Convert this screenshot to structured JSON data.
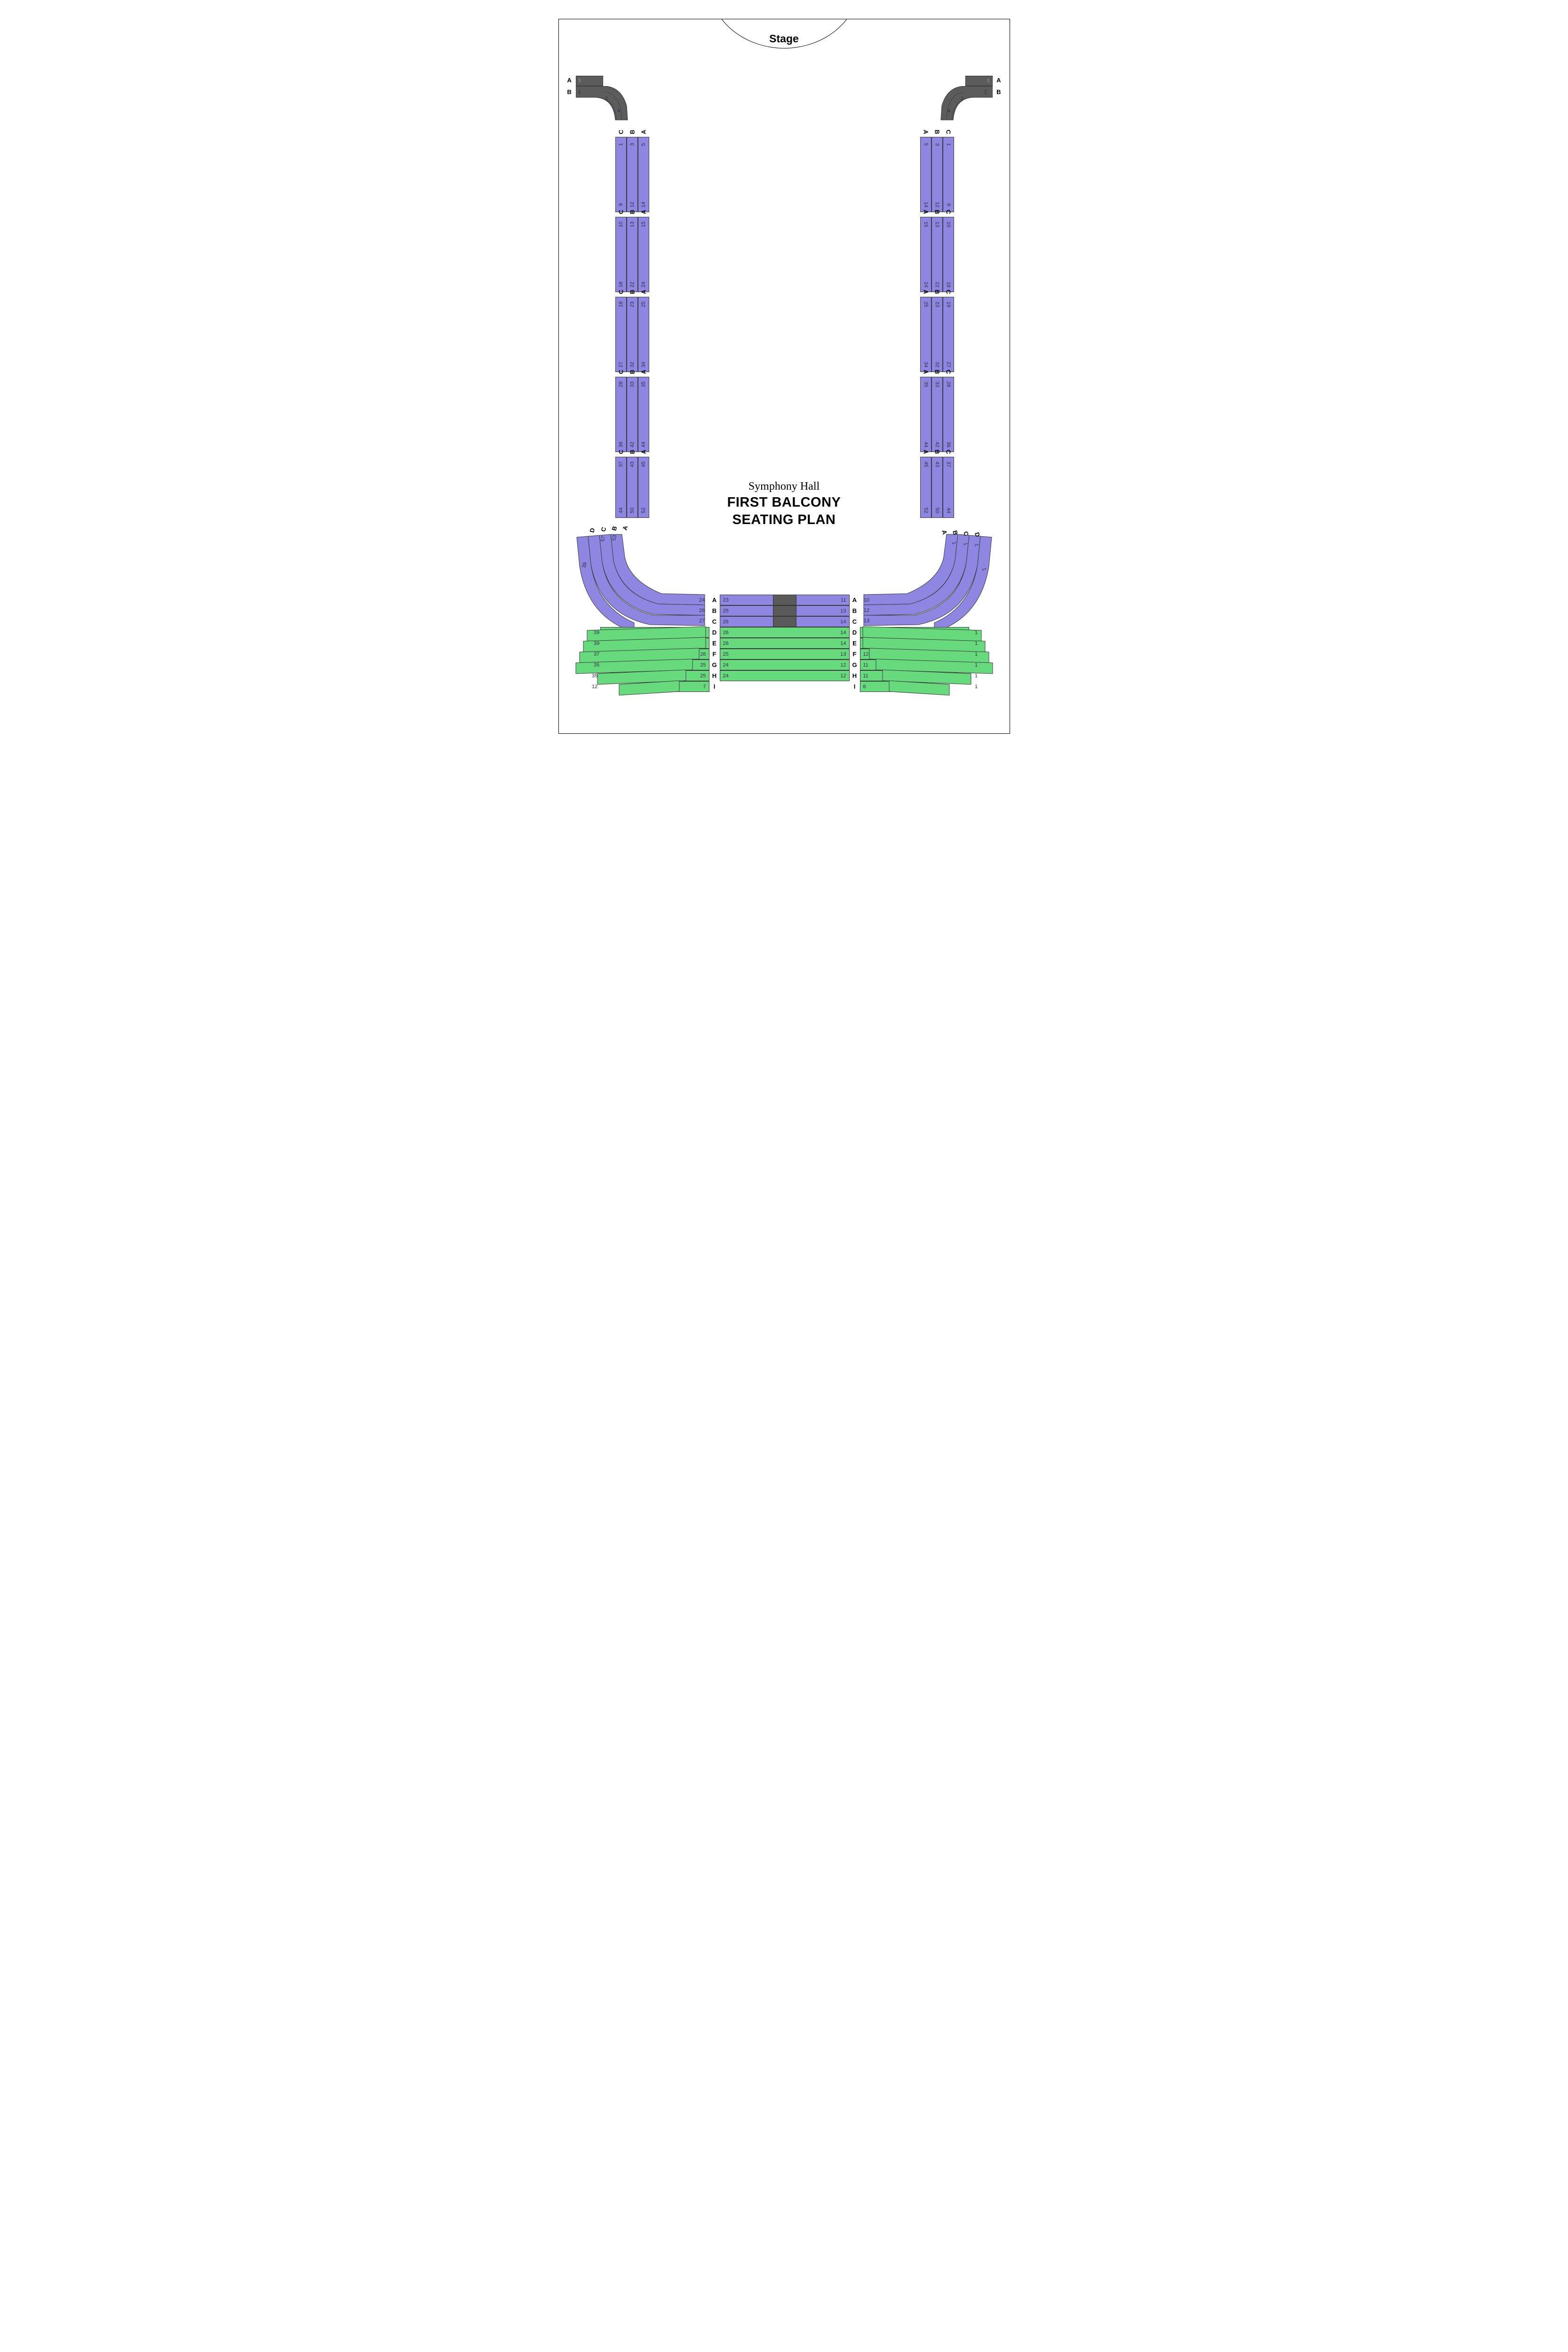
{
  "stage_label": "Stage",
  "titles": {
    "line1": "Symphony Hall",
    "line2": "FIRST BALCONY",
    "line3": "SEATING PLAN"
  },
  "colors": {
    "purple": "#8e86e0",
    "green": "#68da7e",
    "grey": "#5c5c5c",
    "darkgrey": "#5a5a5a",
    "stroke": "#3a3a3a",
    "row_stroke_inner": "#555570",
    "bg": "#ffffff"
  },
  "corner": {
    "left": {
      "rows": [
        "A",
        "B"
      ],
      "nums": [
        [
          "1"
        ],
        [
          "1",
          "2",
          "4"
        ]
      ]
    },
    "right": {
      "rows": [
        "A",
        "B"
      ],
      "nums": [
        [
          "1"
        ],
        [
          "1",
          "2",
          "4"
        ]
      ]
    }
  },
  "side_blocks": {
    "row_labels": [
      "A",
      "B",
      "C"
    ],
    "segments": [
      {
        "left": {
          "A": [
            "5",
            "14"
          ],
          "B": [
            "3",
            "12"
          ],
          "C": [
            "1",
            "9"
          ]
        },
        "right": {
          "A": [
            "5",
            "14"
          ],
          "B": [
            "3",
            "12"
          ],
          "C": [
            "1",
            "9"
          ]
        }
      },
      {
        "left": {
          "A": [
            "15",
            "24"
          ],
          "B": [
            "13",
            "22"
          ],
          "C": [
            "10",
            "18"
          ]
        },
        "right": {
          "A": [
            "15",
            "24"
          ],
          "B": [
            "13",
            "22"
          ],
          "C": [
            "10",
            "18"
          ]
        }
      },
      {
        "left": {
          "A": [
            "25",
            "34"
          ],
          "B": [
            "23",
            "32"
          ],
          "C": [
            "19",
            "27"
          ]
        },
        "right": {
          "A": [
            "25",
            "34"
          ],
          "B": [
            "23",
            "32"
          ],
          "C": [
            "19",
            "27"
          ]
        }
      },
      {
        "left": {
          "A": [
            "35",
            "44"
          ],
          "B": [
            "33",
            "42"
          ],
          "C": [
            "28",
            "36"
          ]
        },
        "right": {
          "A": [
            "35",
            "44"
          ],
          "B": [
            "33",
            "42"
          ],
          "C": [
            "28",
            "36"
          ]
        }
      },
      {
        "left": {
          "A": [
            "45",
            "52"
          ],
          "B": [
            "43",
            "50"
          ],
          "C": [
            "37",
            "44"
          ]
        },
        "right": {
          "A": [
            "45",
            "52"
          ],
          "B": [
            "43",
            "50"
          ],
          "C": [
            "37",
            "44"
          ]
        }
      }
    ]
  },
  "curve_start": {
    "left": {
      "A": "53",
      "B": "57",
      "D": "",
      "labD": "D"
    },
    "right": {
      "A": "1",
      "B": "1",
      "D": "1",
      "labD": "D"
    }
  },
  "center": {
    "row_labels": [
      "A",
      "B",
      "C",
      "D",
      "E",
      "F",
      "G",
      "H",
      "I"
    ],
    "colors": [
      "purple",
      "purple",
      "purple",
      "green",
      "green",
      "green",
      "green",
      "green",
      "green"
    ],
    "has_dark_center": [
      true,
      true,
      true,
      false,
      false,
      false,
      false,
      false,
      false
    ],
    "left_wing": [
      [
        "24"
      ],
      [
        "26"
      ],
      [
        "27"
      ],
      [
        "27"
      ],
      [
        "27"
      ],
      [
        "26"
      ],
      [
        "25"
      ],
      [
        "25"
      ],
      [
        "7"
      ]
    ],
    "center_nums": [
      [
        "23",
        "11"
      ],
      [
        "25",
        "13"
      ],
      [
        "26",
        "14"
      ],
      [
        "26",
        "14"
      ],
      [
        "26",
        "14"
      ],
      [
        "25",
        "13"
      ],
      [
        "24",
        "12"
      ],
      [
        "24",
        "12"
      ],
      [
        "",
        ""
      ]
    ],
    "right_wing": [
      [
        "10"
      ],
      [
        "12"
      ],
      [
        "13"
      ],
      [
        "13"
      ],
      [
        "13"
      ],
      [
        "12"
      ],
      [
        "11"
      ],
      [
        "11"
      ],
      [
        "6"
      ]
    ],
    "outer_left": [
      [
        "",
        "39"
      ],
      [
        "",
        "39"
      ],
      [
        "",
        "37"
      ],
      [
        "",
        "35"
      ],
      [
        "35",
        ""
      ],
      [
        "12",
        ""
      ],
      [
        "",
        ""
      ]
    ],
    "outer_right": [
      [
        "",
        "1"
      ],
      [
        "",
        "1"
      ],
      [
        "",
        "1"
      ],
      [
        "",
        "1"
      ],
      [
        "",
        "1"
      ],
      [
        "",
        "1"
      ],
      [
        "",
        ""
      ]
    ]
  },
  "bottom_curve_nums": {
    "left": {
      "A": "53",
      "B": "57",
      "C": "",
      "D": ""
    },
    "right": {
      "A": "",
      "B": "",
      "C": "1",
      "D": "1"
    }
  }
}
